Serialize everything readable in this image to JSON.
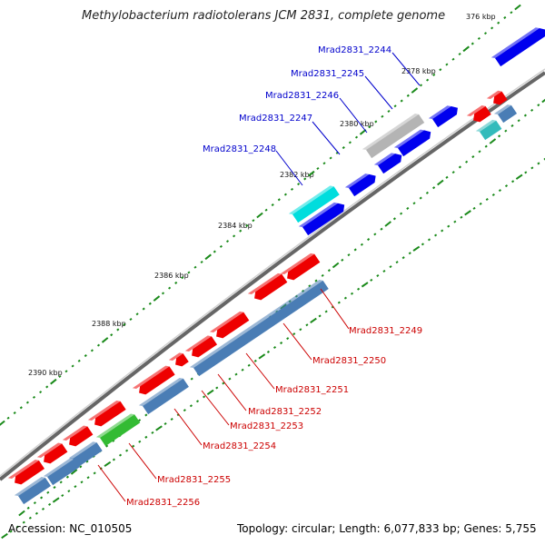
{
  "title": "Methylobacterium radiotolerans JCM 2831, complete genome",
  "footer": {
    "accession": "Accession: NC_010505",
    "topology": "Topology: circular; Length: 6,077,833 bp; Genes: 5,755"
  },
  "ticks": [
    "376 kbp",
    "2378 kbp",
    "2380 kbp",
    "2382 kbp",
    "2384 kbp",
    "2386 kbp",
    "2388 kbp",
    "2390 kbp"
  ],
  "gene_labels": [
    "Mrad2831_2244",
    "Mrad2831_2245",
    "Mrad2831_2246",
    "Mrad2831_2247",
    "Mrad2831_2248",
    "Mrad2831_2249",
    "Mrad2831_2250",
    "Mrad2831_2251",
    "Mrad2831_2252",
    "Mrad2831_2253",
    "Mrad2831_2254",
    "Mrad2831_2255",
    "Mrad2831_2256"
  ],
  "colors": {
    "label_blue": "#0000cc",
    "label_red": "#cc0000",
    "gene_blue": "#0000ee",
    "gene_red": "#ee0000",
    "gene_steel": "#4a7db5",
    "gene_gray": "#b4b4b4",
    "gene_cyan": "#00dddd",
    "gene_teal": "#33bbbb",
    "gene_green": "#33bb33",
    "backbone": "#888888",
    "tick_green": "#1a8a1a"
  }
}
